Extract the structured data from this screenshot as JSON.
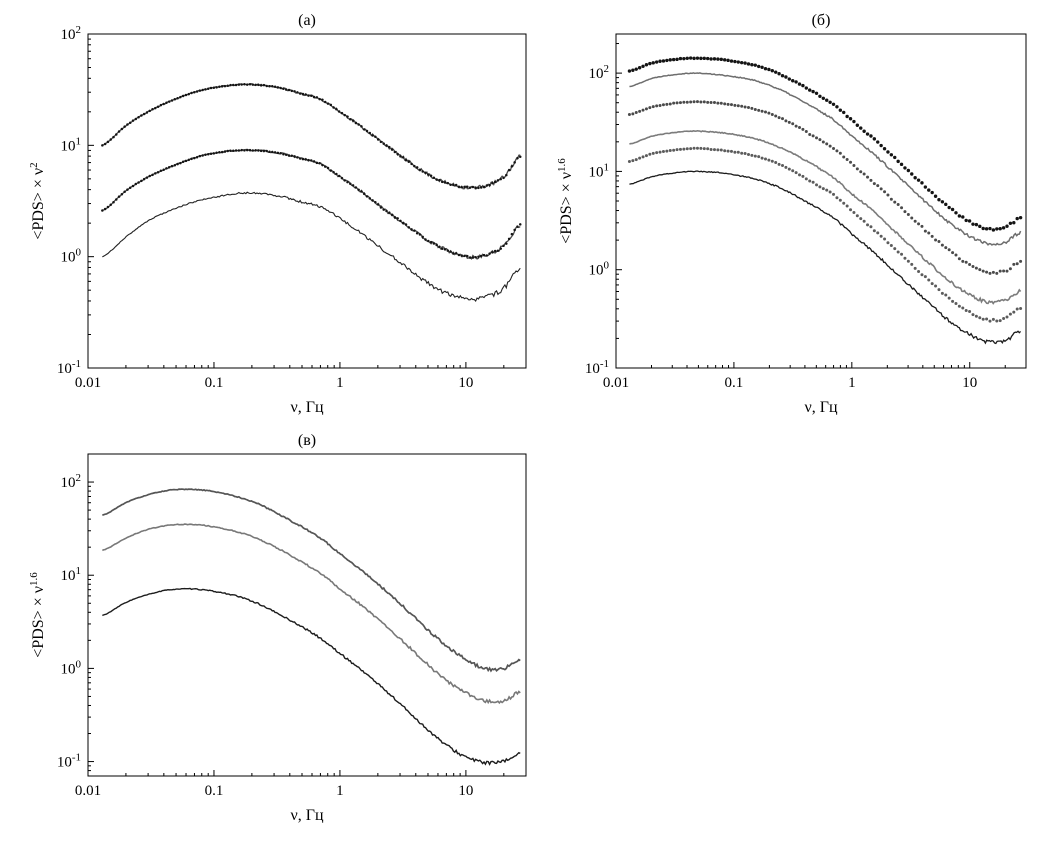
{
  "figure": {
    "background": "#ffffff",
    "panel_count": 3
  },
  "chart_data": [
    {
      "type": "line",
      "title": "(а)",
      "xlabel": "ν, Гц",
      "ylabel": "<PDS> × ν^2",
      "xscale": "log",
      "yscale": "log",
      "xlim": [
        0.01,
        30
      ],
      "ylim": [
        0.1,
        100
      ],
      "xticks": [
        0.01,
        0.1,
        1,
        10
      ],
      "xtick_labels": [
        "0.01",
        "0.1",
        "1",
        "10"
      ],
      "yticks": [
        0.1,
        1,
        10,
        100
      ],
      "ytick_labels": [
        "10^-1",
        "10^0",
        "10^1",
        "10^2"
      ],
      "grid": false,
      "legend": "none",
      "x": [
        0.013,
        0.02,
        0.03,
        0.045,
        0.07,
        0.1,
        0.15,
        0.22,
        0.33,
        0.5,
        0.7,
        1.0,
        1.5,
        2.2,
        3.3,
        5.0,
        7.0,
        10,
        14,
        20,
        27
      ],
      "series": [
        {
          "name": "upper-line",
          "style": "solid",
          "color": "#4c4c4c",
          "width": 1.3,
          "noise": 0.02,
          "seed": 11,
          "y": [
            10,
            15,
            20,
            25,
            30,
            33,
            35,
            35,
            33,
            29,
            26,
            20,
            14.5,
            10.5,
            7.5,
            5.5,
            4.6,
            4.2,
            4.3,
            5.2,
            8.0
          ]
        },
        {
          "name": "upper-points",
          "style": "dotted",
          "color": "#141414",
          "dot": 1.25,
          "dots": 150,
          "noise": 0.008,
          "seed": 12,
          "y": [
            10,
            15,
            20,
            25,
            30,
            33,
            35,
            35,
            33,
            29,
            26,
            20,
            14.5,
            10.5,
            7.5,
            5.5,
            4.6,
            4.2,
            4.3,
            5.2,
            8.0
          ]
        },
        {
          "name": "middle-line",
          "style": "solid",
          "color": "#4c4c4c",
          "width": 1.3,
          "noise": 0.02,
          "seed": 13,
          "y": [
            2.6,
            3.9,
            5.2,
            6.4,
            7.7,
            8.5,
            9.0,
            9.0,
            8.5,
            7.6,
            6.8,
            5.2,
            3.8,
            2.7,
            1.95,
            1.4,
            1.15,
            1.0,
            1.02,
            1.25,
            1.95
          ]
        },
        {
          "name": "middle-points",
          "style": "dotted",
          "color": "#141414",
          "dot": 1.25,
          "dots": 150,
          "noise": 0.008,
          "seed": 14,
          "y": [
            2.6,
            3.9,
            5.2,
            6.4,
            7.7,
            8.5,
            9.0,
            9.0,
            8.5,
            7.6,
            6.8,
            5.2,
            3.8,
            2.7,
            1.95,
            1.4,
            1.15,
            1.0,
            1.02,
            1.25,
            1.95
          ]
        },
        {
          "name": "lower-line",
          "style": "solid",
          "color": "#222222",
          "width": 1.1,
          "noise": 0.022,
          "seed": 15,
          "y": [
            1.0,
            1.5,
            2.1,
            2.6,
            3.1,
            3.4,
            3.7,
            3.7,
            3.5,
            3.1,
            2.8,
            2.2,
            1.6,
            1.15,
            0.82,
            0.58,
            0.47,
            0.42,
            0.43,
            0.52,
            0.8
          ]
        }
      ]
    },
    {
      "type": "line",
      "title": "(б)",
      "xlabel": "ν, Гц",
      "ylabel": "<PDS> × ν^1.6",
      "xscale": "log",
      "yscale": "log",
      "xlim": [
        0.01,
        30
      ],
      "ylim": [
        0.1,
        250
      ],
      "xticks": [
        0.01,
        0.1,
        1,
        10
      ],
      "xtick_labels": [
        "0.01",
        "0.1",
        "1",
        "10"
      ],
      "yticks": [
        0.1,
        1,
        10,
        100
      ],
      "ytick_labels": [
        "10^-1",
        "10^0",
        "10^1",
        "10^2"
      ],
      "grid": false,
      "legend": "none",
      "x": [
        0.013,
        0.02,
        0.03,
        0.045,
        0.07,
        0.1,
        0.15,
        0.22,
        0.33,
        0.5,
        0.7,
        1.0,
        1.5,
        2.2,
        3.3,
        5.0,
        7.0,
        10,
        14,
        20,
        27
      ],
      "series": [
        {
          "name": "curve-1-points",
          "style": "dotted",
          "color": "#141414",
          "dot": 1.7,
          "dots": 115,
          "noise": 0.012,
          "seed": 21,
          "y": [
            105,
            126,
            137,
            142,
            139,
            132,
            120,
            103,
            82,
            62,
            48,
            33,
            22,
            14.5,
            9.2,
            5.8,
            4.1,
            3.1,
            2.6,
            2.7,
            3.4
          ]
        },
        {
          "name": "curve-2-line",
          "style": "solid",
          "color": "#6e6e6e",
          "width": 1.5,
          "noise": 0.018,
          "seed": 22,
          "y": [
            73,
            88,
            96,
            100,
            97,
            92,
            84,
            72,
            57,
            43,
            33.5,
            23,
            15.4,
            10.1,
            6.4,
            4.1,
            2.9,
            2.2,
            1.85,
            1.9,
            2.4
          ]
        },
        {
          "name": "curve-3-points",
          "style": "dotted",
          "color": "#4a4a4a",
          "dot": 1.5,
          "dots": 115,
          "noise": 0.012,
          "seed": 23,
          "y": [
            38,
            45,
            49,
            51,
            50,
            47,
            43,
            37,
            29.5,
            22,
            17.3,
            11.9,
            7.9,
            5.2,
            3.3,
            2.1,
            1.5,
            1.12,
            0.94,
            0.97,
            1.22
          ]
        },
        {
          "name": "curve-4-line",
          "style": "solid",
          "color": "#7c7c7c",
          "width": 1.6,
          "noise": 0.018,
          "seed": 24,
          "y": [
            19,
            22.7,
            24.7,
            25.7,
            25,
            23.8,
            21.6,
            18.5,
            14.8,
            11.2,
            8.6,
            5.9,
            4.0,
            2.6,
            1.66,
            1.05,
            0.74,
            0.56,
            0.47,
            0.49,
            0.61
          ]
        },
        {
          "name": "curve-5-points",
          "style": "dotted",
          "color": "#5c5c5c",
          "dot": 1.5,
          "dots": 115,
          "noise": 0.012,
          "seed": 25,
          "y": [
            12.6,
            15.1,
            16.4,
            17.1,
            16.7,
            15.8,
            14.4,
            12.4,
            9.8,
            7.4,
            5.8,
            4.0,
            2.6,
            1.74,
            1.1,
            0.7,
            0.49,
            0.37,
            0.31,
            0.32,
            0.41
          ]
        },
        {
          "name": "curve-6-line",
          "style": "solid",
          "color": "#1a1a1a",
          "width": 1.3,
          "noise": 0.02,
          "seed": 26,
          "y": [
            7.4,
            8.8,
            9.6,
            10,
            9.8,
            9.2,
            8.4,
            7.2,
            5.7,
            4.3,
            3.35,
            2.3,
            1.54,
            1.01,
            0.64,
            0.41,
            0.29,
            0.22,
            0.185,
            0.19,
            0.24
          ]
        }
      ]
    },
    {
      "type": "line",
      "title": "(в)",
      "xlabel": "ν, Гц",
      "ylabel": "<PDS> × ν^1.6",
      "xscale": "log",
      "yscale": "log",
      "xlim": [
        0.01,
        30
      ],
      "ylim": [
        0.07,
        200
      ],
      "xticks": [
        0.01,
        0.1,
        1,
        10
      ],
      "xtick_labels": [
        "0.01",
        "0.1",
        "1",
        "10"
      ],
      "yticks": [
        0.1,
        1,
        10,
        100
      ],
      "ytick_labels": [
        "10^-1",
        "10^0",
        "10^1",
        "10^2"
      ],
      "grid": false,
      "legend": "none",
      "x": [
        0.013,
        0.02,
        0.03,
        0.045,
        0.07,
        0.1,
        0.15,
        0.22,
        0.33,
        0.5,
        0.7,
        1.0,
        1.5,
        2.2,
        3.3,
        5.0,
        7.0,
        10,
        14,
        20,
        27
      ],
      "series": [
        {
          "name": "upper-line",
          "style": "solid",
          "color": "#555555",
          "width": 1.7,
          "noise": 0.018,
          "seed": 31,
          "y": [
            44,
            60,
            73,
            82,
            83,
            79,
            70,
            59,
            45,
            33,
            25,
            17,
            11.2,
            7.2,
            4.4,
            2.6,
            1.75,
            1.25,
            1.0,
            1.0,
            1.25
          ]
        },
        {
          "name": "middle-line",
          "style": "solid",
          "color": "#787878",
          "width": 1.6,
          "noise": 0.018,
          "seed": 32,
          "y": [
            18.5,
            25,
            31,
            34.5,
            35,
            33,
            29.5,
            24.8,
            19,
            13.9,
            10.5,
            7.1,
            4.7,
            3.0,
            1.85,
            1.1,
            0.74,
            0.55,
            0.45,
            0.45,
            0.56
          ]
        },
        {
          "name": "lower-line",
          "style": "solid",
          "color": "#1c1c1c",
          "width": 1.4,
          "noise": 0.02,
          "seed": 33,
          "y": [
            3.7,
            5.1,
            6.2,
            7.0,
            7.1,
            6.7,
            6.0,
            5.0,
            3.8,
            2.8,
            2.1,
            1.44,
            0.95,
            0.61,
            0.37,
            0.22,
            0.15,
            0.112,
            0.098,
            0.1,
            0.125
          ]
        }
      ]
    }
  ]
}
